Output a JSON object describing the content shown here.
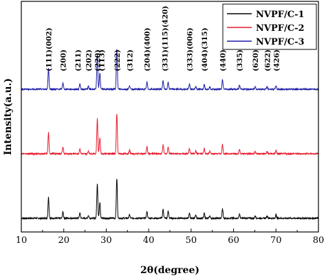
{
  "chart_data": {
    "type": "line",
    "xlabel": "2θ(degree)",
    "ylabel": "Intensity(a.u.)",
    "xlim": [
      10,
      80
    ],
    "xticks": [
      "10",
      "20",
      "30",
      "40",
      "50",
      "60",
      "70",
      "80"
    ],
    "grid": false,
    "legend_position": "top-right",
    "series": [
      {
        "name": "NVPF/C-1",
        "color": "#000000"
      },
      {
        "name": "NVPF/C-2",
        "color": "#e8192c"
      },
      {
        "name": "NVPF/C-3",
        "color": "#1a1aa6"
      }
    ],
    "peaks": [
      {
        "x": 16.4,
        "h": 0.9
      },
      {
        "x": 19.8,
        "h": 0.28
      },
      {
        "x": 23.8,
        "h": 0.22
      },
      {
        "x": 25.8,
        "h": 0.12
      },
      {
        "x": 27.9,
        "h": 1.5
      },
      {
        "x": 28.5,
        "h": 0.7
      },
      {
        "x": 32.5,
        "h": 1.7
      },
      {
        "x": 35.5,
        "h": 0.15
      },
      {
        "x": 39.6,
        "h": 0.3
      },
      {
        "x": 43.4,
        "h": 0.38
      },
      {
        "x": 44.6,
        "h": 0.3
      },
      {
        "x": 49.6,
        "h": 0.22
      },
      {
        "x": 51.1,
        "h": 0.12
      },
      {
        "x": 53.1,
        "h": 0.22
      },
      {
        "x": 54.4,
        "h": 0.1
      },
      {
        "x": 57.4,
        "h": 0.4
      },
      {
        "x": 61.4,
        "h": 0.18
      },
      {
        "x": 65.1,
        "h": 0.1
      },
      {
        "x": 67.9,
        "h": 0.1
      },
      {
        "x": 70.0,
        "h": 0.16
      }
    ],
    "annotations": [
      {
        "text": "(111)(002)",
        "x": 16.4
      },
      {
        "text": "(200)",
        "x": 19.8
      },
      {
        "text": "(211)",
        "x": 23.3
      },
      {
        "text": "(202)",
        "x": 25.8
      },
      {
        "text": "(220)",
        "x": 27.9
      },
      {
        "text": "(113)",
        "x": 28.9
      },
      {
        "text": "(222)",
        "x": 32.5
      },
      {
        "text": "(312)",
        "x": 35.5
      },
      {
        "text": "(204)(400)",
        "x": 39.6
      },
      {
        "text": "(331)(115)(420)",
        "x": 43.8
      },
      {
        "text": "(333)(006)",
        "x": 49.6
      },
      {
        "text": "(404)(315)",
        "x": 53.1
      },
      {
        "text": "(440)",
        "x": 57.4
      },
      {
        "text": "(335)",
        "x": 61.4
      },
      {
        "text": "(620)",
        "x": 65.1
      },
      {
        "text": "(622)",
        "x": 67.9
      },
      {
        "text": "(426)",
        "x": 70.0
      }
    ]
  }
}
